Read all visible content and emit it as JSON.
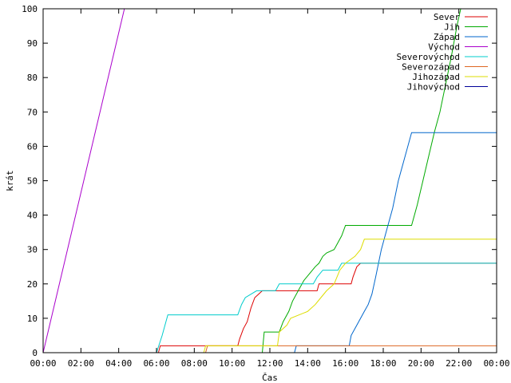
{
  "chart_data": {
    "type": "line",
    "title": "",
    "xlabel": "Čas",
    "ylabel": "krát",
    "xlim_hours": [
      0,
      24
    ],
    "ylim": [
      0,
      100
    ],
    "y_ticks": [
      0,
      10,
      20,
      30,
      40,
      50,
      60,
      70,
      80,
      90,
      100
    ],
    "x_ticks": [
      {
        "hour": 0,
        "label": "00:00"
      },
      {
        "hour": 2,
        "label": "02:00"
      },
      {
        "hour": 4,
        "label": "04:00"
      },
      {
        "hour": 6,
        "label": "06:00"
      },
      {
        "hour": 8,
        "label": "08:00"
      },
      {
        "hour": 10,
        "label": "10:00"
      },
      {
        "hour": 12,
        "label": "12:00"
      },
      {
        "hour": 14,
        "label": "14:00"
      },
      {
        "hour": 16,
        "label": "16:00"
      },
      {
        "hour": 18,
        "label": "18:00"
      },
      {
        "hour": 20,
        "label": "20:00"
      },
      {
        "hour": 22,
        "label": "22:00"
      },
      {
        "hour": 24,
        "label": "00:00"
      }
    ],
    "grid": false,
    "legend_position": "top-right",
    "series": [
      {
        "name": "Sever",
        "color": "#dd0000",
        "points": [
          [
            6.1,
            0
          ],
          [
            6.2,
            2
          ],
          [
            8.7,
            2
          ],
          [
            10.3,
            2
          ],
          [
            10.4,
            4
          ],
          [
            10.6,
            7
          ],
          [
            10.8,
            9
          ],
          [
            11.0,
            13
          ],
          [
            11.2,
            16
          ],
          [
            11.4,
            17
          ],
          [
            11.6,
            18
          ],
          [
            14.5,
            18
          ],
          [
            14.6,
            20
          ],
          [
            16.3,
            20
          ],
          [
            16.4,
            22
          ],
          [
            16.6,
            25
          ],
          [
            16.8,
            26
          ],
          [
            24,
            26
          ]
        ]
      },
      {
        "name": "Jih",
        "color": "#00aa00",
        "points": [
          [
            11.6,
            0
          ],
          [
            11.7,
            6
          ],
          [
            12.5,
            6
          ],
          [
            12.7,
            9
          ],
          [
            13.0,
            12
          ],
          [
            13.2,
            15
          ],
          [
            13.5,
            18
          ],
          [
            13.8,
            21
          ],
          [
            14.1,
            23
          ],
          [
            14.4,
            25
          ],
          [
            14.6,
            26
          ],
          [
            14.8,
            28
          ],
          [
            15.0,
            29
          ],
          [
            15.4,
            30
          ],
          [
            15.6,
            32
          ],
          [
            15.8,
            34
          ],
          [
            16.0,
            37
          ],
          [
            19.5,
            37
          ],
          [
            19.8,
            43
          ],
          [
            20.1,
            50
          ],
          [
            20.4,
            57
          ],
          [
            20.7,
            64
          ],
          [
            21.0,
            70
          ],
          [
            21.3,
            78
          ],
          [
            21.6,
            86
          ],
          [
            21.9,
            95
          ],
          [
            22.1,
            100
          ]
        ]
      },
      {
        "name": "Západ",
        "color": "#0066cc",
        "points": [
          [
            13.3,
            0
          ],
          [
            13.4,
            2
          ],
          [
            16.2,
            2
          ],
          [
            16.3,
            5
          ],
          [
            16.6,
            8
          ],
          [
            16.8,
            10
          ],
          [
            17.0,
            12
          ],
          [
            17.2,
            14
          ],
          [
            17.4,
            17
          ],
          [
            17.6,
            22
          ],
          [
            17.9,
            30
          ],
          [
            18.2,
            36
          ],
          [
            18.5,
            42
          ],
          [
            18.8,
            50
          ],
          [
            19.2,
            58
          ],
          [
            19.5,
            64
          ],
          [
            24,
            64
          ]
        ]
      },
      {
        "name": "Východ",
        "color": "#aa00cc",
        "points": [
          [
            0,
            0
          ],
          [
            4.3,
            100
          ]
        ]
      },
      {
        "name": "Severovýchod",
        "color": "#00cccc",
        "points": [
          [
            6.0,
            0
          ],
          [
            6.3,
            5
          ],
          [
            6.6,
            11
          ],
          [
            10.3,
            11
          ],
          [
            10.5,
            14
          ],
          [
            10.7,
            16
          ],
          [
            11.0,
            17
          ],
          [
            11.3,
            18
          ],
          [
            12.3,
            18
          ],
          [
            12.5,
            20
          ],
          [
            14.3,
            20
          ],
          [
            14.5,
            22
          ],
          [
            14.8,
            24
          ],
          [
            15.6,
            24
          ],
          [
            15.8,
            26
          ],
          [
            24,
            26
          ]
        ]
      },
      {
        "name": "Severozápad",
        "color": "#dd6622",
        "points": [
          [
            8.6,
            0
          ],
          [
            8.7,
            2
          ],
          [
            12.3,
            2
          ],
          [
            12.4,
            2
          ],
          [
            24,
            2
          ]
        ]
      },
      {
        "name": "Jihozápad",
        "color": "#dddd00",
        "points": [
          [
            8.5,
            0
          ],
          [
            8.6,
            2
          ],
          [
            12.4,
            2
          ],
          [
            12.5,
            6
          ],
          [
            12.9,
            8
          ],
          [
            13.1,
            10
          ],
          [
            14.0,
            12
          ],
          [
            14.4,
            14
          ],
          [
            14.7,
            16
          ],
          [
            15.0,
            18
          ],
          [
            15.4,
            20
          ],
          [
            15.7,
            24
          ],
          [
            16.0,
            26
          ],
          [
            16.5,
            28
          ],
          [
            16.8,
            30
          ],
          [
            17.0,
            33
          ],
          [
            24,
            33
          ]
        ]
      },
      {
        "name": "Jihovýchod",
        "color": "#000099",
        "points": []
      }
    ]
  }
}
